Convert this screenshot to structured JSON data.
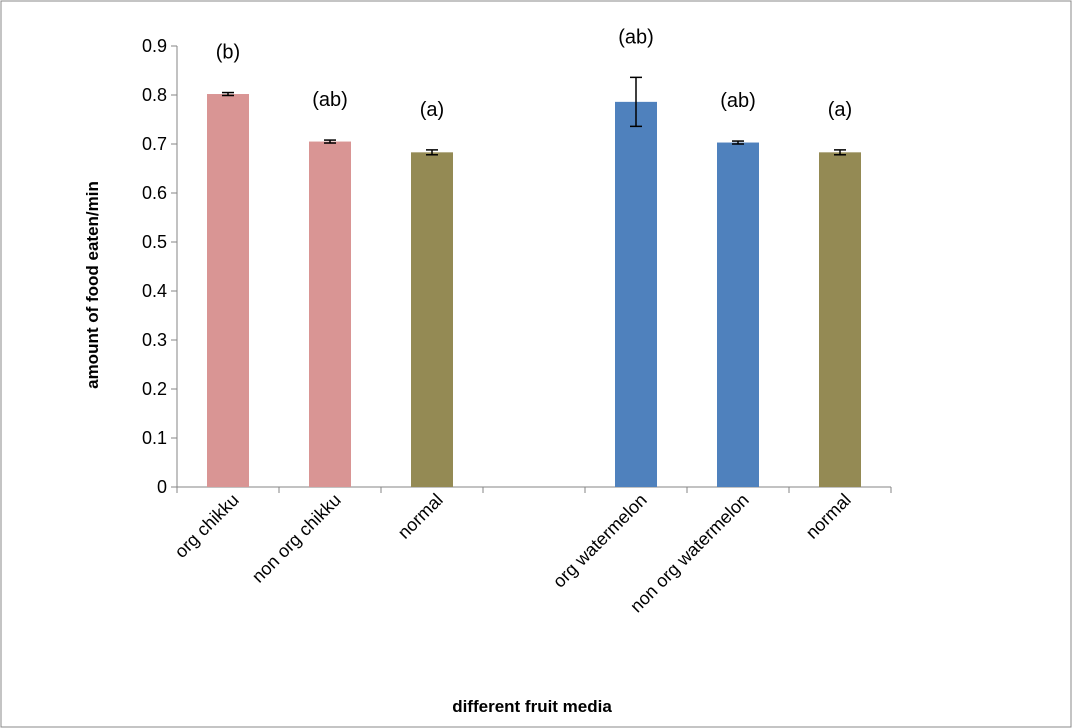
{
  "chart_data": {
    "type": "bar",
    "xlabel": "different fruit media",
    "ylabel": "amount of food eaten/min",
    "ylim": [
      0,
      0.9
    ],
    "yticks": [
      "0",
      "0.1",
      "0.2",
      "0.3",
      "0.4",
      "0.5",
      "0.6",
      "0.7",
      "0.8",
      "0.9"
    ],
    "grid": false,
    "legend": "none",
    "categories": [
      "org chikku",
      "non org chikku",
      "normal",
      "",
      "org watermelon",
      "non org watermelon",
      "normal"
    ],
    "values": [
      0.802,
      0.705,
      0.683,
      null,
      0.786,
      0.703,
      0.683
    ],
    "errors": [
      0.003,
      0.003,
      0.005,
      null,
      0.05,
      0.003,
      0.005
    ],
    "significance": [
      "(b)",
      "(ab)",
      "(a)",
      "",
      "(ab)",
      "(ab)",
      "(a)"
    ],
    "colors": [
      "#d99594",
      "#d99594",
      "#948a54",
      null,
      "#4f81bd",
      "#4f81bd",
      "#948a54"
    ]
  }
}
